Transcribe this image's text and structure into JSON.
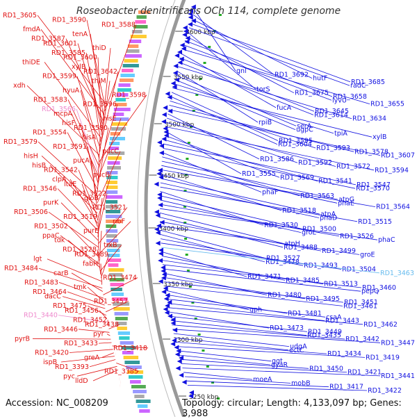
{
  "title": "Roseobacter denitrificans OCh 114, complete genome",
  "footer": {
    "accession": "Accession: NC_008209",
    "topology": "Topology: circular; Length: 4,133,097 bp; Genes: 3,988"
  },
  "colors": {
    "left": "#e01010",
    "right": "#1010e0",
    "highlight_left": "#ee88cc",
    "highlight_right": "#66bbee",
    "backbone": "#999999"
  },
  "scale_labels": [
    "3600 kbp",
    "3550 kbp",
    "3500 kbp",
    "3450 kbp",
    "3400 kbp",
    "3350 kbp",
    "3300 kbp",
    "3250 kbp"
  ],
  "left_labels": [
    "RD1_3605",
    "RD1_3590",
    "RD1_3588",
    "fmdA",
    "tenA",
    "RD1_3587",
    "RD1_3601",
    "thiD",
    "RD1_3585",
    "RD1_3600",
    "thiDE",
    "xylB",
    "RD1_3642",
    "RD1_3599",
    "thiM",
    "xdh",
    "hyuA",
    "RD1_3598",
    "RD1_3583",
    "RD1_3596",
    "RD1_3566",
    "mcpA",
    "hisE",
    "hisF",
    "RD1_3580",
    "RD1_3554",
    "hisA",
    "RD1_3579",
    "RD1_3591",
    "pucC",
    "hisH",
    "pucA",
    "hisB",
    "RD1_3542",
    "pucB",
    "clpA",
    "ltaE",
    "RD1_3546",
    "RD1_3522",
    "gloB",
    "purK",
    "RD1_3521",
    "RD1_3506",
    "RD1_3519",
    "ribF",
    "RD1_3502",
    "purE",
    "ppaC",
    "tdk",
    "trxB",
    "RD1_3528",
    "RD1_3489",
    "lgt",
    "fabH",
    "RD1_3484",
    "carB",
    "RD1_3474",
    "RD1_3483",
    "tmk",
    "RD1_3464",
    "dacC",
    "RD1_3457",
    "RD1_3475",
    "RD1_3456",
    "RD1_3440",
    "RD1_3452",
    "RD1_3438",
    "RD1_3446",
    "pyr",
    "pyrB",
    "RD1_3433",
    "RD1_3418",
    "RD1_3420",
    "greA",
    "ispB",
    "RD1_3393",
    "RD1_3385",
    "pyc",
    "lldD"
  ],
  "right_labels": [
    "gnl",
    "RD1_3692",
    "hutF",
    "RD1_3685",
    "radC",
    "torS",
    "RD1_3675",
    "RD1_3658",
    "lyvU",
    "RD1_3655",
    "fucA",
    "RD1_3645",
    "RD1_3614",
    "RD1_3634",
    "rpiB",
    "serA",
    "ugpC",
    "tpiA",
    "xylB",
    "RD1_3595",
    "RD1_3604",
    "RD1_3593",
    "RD1_3578",
    "RD1_3607",
    "RD1_3586",
    "RD1_3592",
    "RD1_3572",
    "RD1_3594",
    "RD1_3555",
    "RD1_3569",
    "RD1_3541",
    "RD1_3547",
    "RD1_3570",
    "phaF",
    "RD1_3563",
    "atpG",
    "phaE",
    "RD1_3564",
    "RD1_3518",
    "atpA",
    "phaD",
    "RD1_3515",
    "RD1_3530",
    "RD1_3500",
    "groL",
    "RD1_3526",
    "phaC",
    "atpH",
    "RD1_3488",
    "RD1_3499",
    "groE",
    "RD1_3527",
    "RD1_3478",
    "RD1_3493",
    "RD1_3504",
    "RD1_3463",
    "RD1_3471",
    "RD1_3485",
    "RD1_3513",
    "RD1_3460",
    "pepQ",
    "RD1_3480",
    "RD1_3495",
    "RD1_3451",
    "RD1_3461",
    "gph",
    "RD1_3481",
    "csaA",
    "RD1_3443",
    "RD1_3462",
    "RD1_3473",
    "RD1_3449",
    "RD1_3435",
    "RD1_3442",
    "RD1_3447",
    "udgA",
    "ectC",
    "RD1_3434",
    "RD1_3419",
    "ggt",
    "gyaR",
    "RD1_3450",
    "RD1_3421",
    "RD1_3441",
    "moeA",
    "mobB",
    "RD1_3417",
    "RD1_3422"
  ],
  "highlight_left": [
    "RD1_3566",
    "RD1_3440"
  ],
  "highlight_right": [
    "RD1_3463"
  ]
}
